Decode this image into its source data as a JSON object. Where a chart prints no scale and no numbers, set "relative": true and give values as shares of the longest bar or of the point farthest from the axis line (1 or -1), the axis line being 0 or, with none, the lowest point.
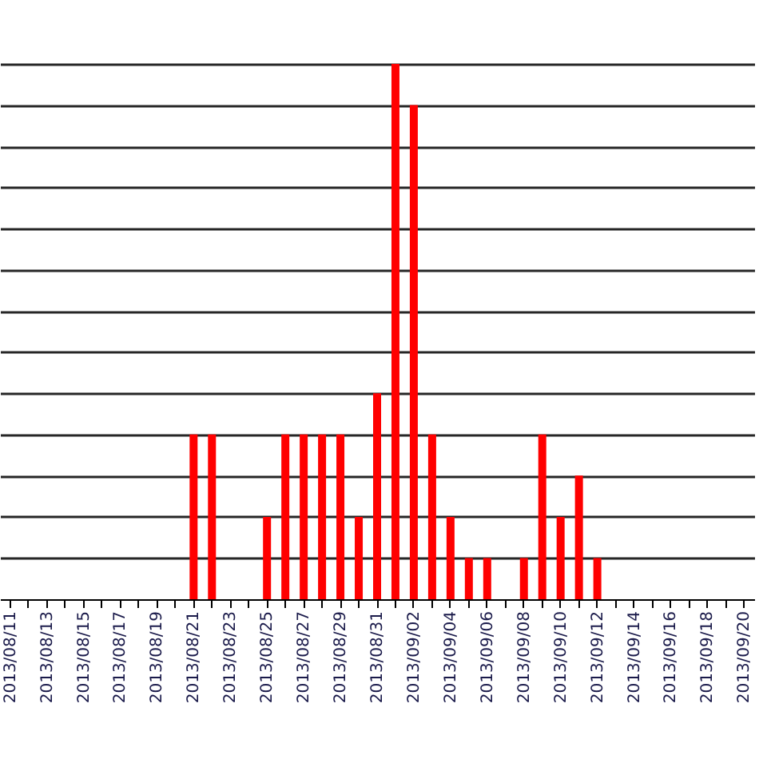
{
  "chart_data": {
    "type": "bar",
    "relative": true,
    "grid": "y",
    "categories": [
      "2013/08/11",
      null,
      "2013/08/13",
      null,
      "2013/08/15",
      null,
      "2013/08/17",
      null,
      "2013/08/19",
      null,
      "2013/08/21",
      null,
      "2013/08/23",
      null,
      "2013/08/25",
      null,
      "2013/08/27",
      null,
      "2013/08/29",
      null,
      "2013/08/31",
      null,
      "2013/09/02",
      null,
      "2013/09/04",
      null,
      "2013/09/06",
      null,
      "2013/09/08",
      null,
      "2013/09/10",
      null,
      "2013/09/12",
      null,
      "2013/09/14",
      null,
      "2013/09/16",
      null,
      "2013/09/18",
      null,
      "2013/09/20"
    ],
    "color": "#ff0000",
    "values": [
      0,
      0,
      0,
      0,
      0,
      0,
      0,
      0,
      0,
      0,
      0.3077,
      0.3077,
      0,
      0,
      0.1538,
      0.3077,
      0.3077,
      0.3077,
      0.3077,
      0.1538,
      0.3846,
      1,
      0.9231,
      0.3077,
      0.1538,
      0.0769,
      0.0769,
      0,
      0.0769,
      0.3077,
      0.1538,
      0.2308,
      0.0769,
      0,
      0,
      0,
      0,
      0,
      0,
      0,
      0
    ]
  }
}
